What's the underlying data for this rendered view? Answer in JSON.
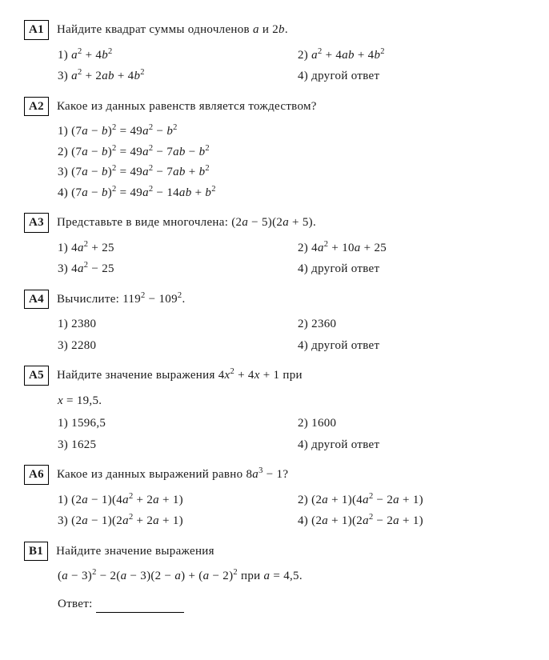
{
  "questions": {
    "a1": {
      "label": "A1",
      "text": "Найдите квадрат суммы одночленов <em>a</em> и 2<em>b</em>.",
      "options": [
        "1) <em>a</em><sup>2</sup> + 4<em>b</em><sup>2</sup>",
        "2) <em>a</em><sup>2</sup> + 4<em>ab</em> + 4<em>b</em><sup>2</sup>",
        "3) <em>a</em><sup>2</sup> + 2<em>ab</em> + 4<em>b</em><sup>2</sup>",
        "4) другой ответ"
      ]
    },
    "a2": {
      "label": "A2",
      "text": "Какое из данных равенств является тождеством?",
      "options": [
        "1) (7<em>a</em> − <em>b</em>)<sup>2</sup> = 49<em>a</em><sup>2</sup> − <em>b</em><sup>2</sup>",
        "2) (7<em>a</em> − <em>b</em>)<sup>2</sup> = 49<em>a</em><sup>2</sup> − 7<em>ab</em> − <em>b</em><sup>2</sup>",
        "3) (7<em>a</em> − <em>b</em>)<sup>2</sup> = 49<em>a</em><sup>2</sup> − 7<em>ab</em> + <em>b</em><sup>2</sup>",
        "4) (7<em>a</em> − <em>b</em>)<sup>2</sup> = 49<em>a</em><sup>2</sup> − 14<em>ab</em> + <em>b</em><sup>2</sup>"
      ]
    },
    "a3": {
      "label": "A3",
      "text": "Представьте в виде многочлена: (2<em>a</em> − 5)(2<em>a</em> + 5).",
      "options": [
        "1) 4<em>a</em><sup>2</sup> + 25",
        "2) 4<em>a</em><sup>2</sup> + 10<em>a</em> + 25",
        "3) 4<em>a</em><sup>2</sup> − 25",
        "4) другой ответ"
      ]
    },
    "a4": {
      "label": "A4",
      "text": "Вычислите: 119<sup>2</sup> − 109<sup>2</sup>.",
      "options": [
        "1) 2380",
        "2) 2360",
        "3) 2280",
        "4) другой ответ"
      ]
    },
    "a5": {
      "label": "A5",
      "text": "Найдите значение выражения 4<em>x</em><sup>2</sup> + 4<em>x</em> + 1 при",
      "extra": "<em>x</em> = 19,5.",
      "options": [
        "1) 1596,5",
        "2) 1600",
        "3) 1625",
        "4) другой ответ"
      ]
    },
    "a6": {
      "label": "A6",
      "text": "Какое из данных выражений равно 8<em>a</em><sup>3</sup> − 1?",
      "options": [
        "1) (2<em>a</em> − 1)(4<em>a</em><sup>2</sup> + 2<em>a</em> + 1)",
        "2) (2<em>a</em> + 1)(4<em>a</em><sup>2</sup> − 2<em>a</em> + 1)",
        "3) (2<em>a</em> − 1)(2<em>a</em><sup>2</sup> + 2<em>a</em> + 1)",
        "4) (2<em>a</em> + 1)(2<em>a</em><sup>2</sup> − 2<em>a</em> + 1)"
      ]
    },
    "b1": {
      "label": "B1",
      "text": "Найдите значение выражения",
      "extra": "(<em>a</em> − 3)<sup>2</sup> − 2(<em>a</em> − 3)(2 − <em>a</em>) + (<em>a</em> − 2)<sup>2</sup> при <em>a</em> = 4,5."
    }
  },
  "answer_label": "Ответ:"
}
